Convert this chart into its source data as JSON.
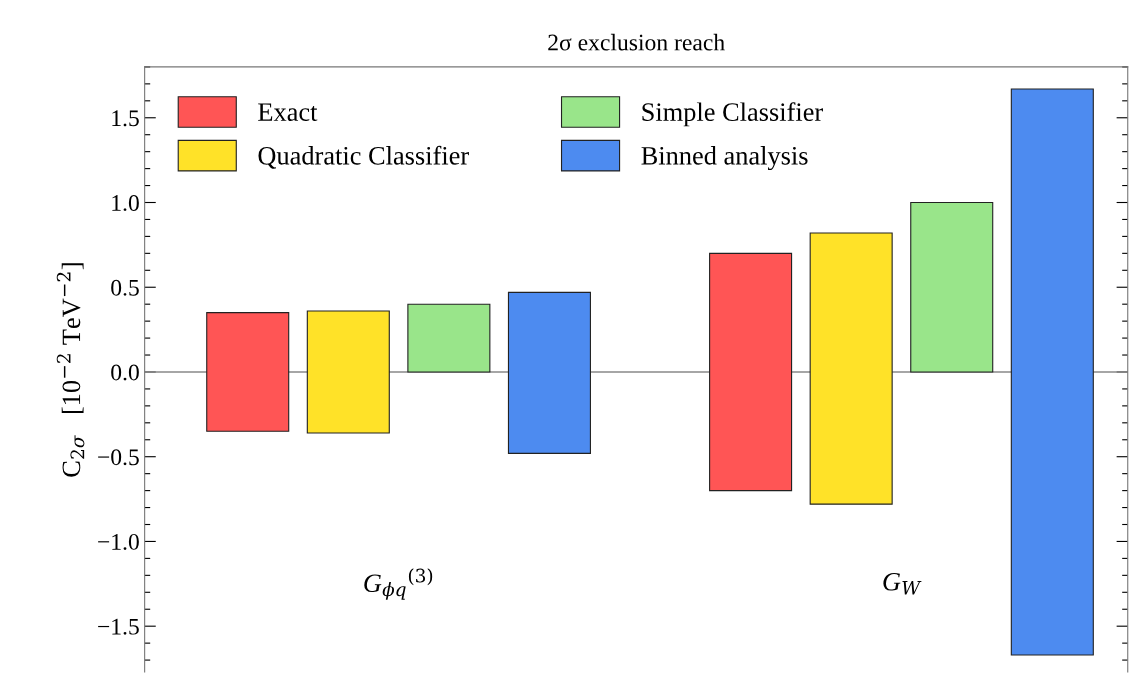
{
  "chart_data": {
    "type": "bar",
    "title": "2σ exclusion reach",
    "ylabel": "C$_{2σ}$   [10$^{−2}$ TeV$^{−2}$]",
    "categories": [
      "G$_{ϕq}$$^{(3)}$",
      "G$_{W}$"
    ],
    "series": [
      {
        "name": "Exact",
        "color": "#ff5555",
        "base": [
          -0.35,
          -0.7
        ],
        "values": [
          0.7,
          1.4
        ]
      },
      {
        "name": "Quadratic Classifier",
        "color": "#ffe228",
        "base": [
          -0.36,
          -0.78
        ],
        "values": [
          0.72,
          1.6
        ]
      },
      {
        "name": "Simple Classifier",
        "color": "#99e58a",
        "base": [
          0,
          0
        ],
        "values": [
          0.4,
          1.0
        ]
      },
      {
        "name": "Binned analysis",
        "color": "#4d8bf0",
        "base": [
          -0.48,
          -1.67
        ],
        "values": [
          0.95,
          3.34
        ]
      }
    ],
    "ylim": [
      -1.77,
      1.8
    ],
    "yticks": [
      {
        "value": -1.5,
        "label": "−1.5"
      },
      {
        "value": -1.0,
        "label": "−1.0"
      },
      {
        "value": -0.5,
        "label": "−0.5"
      },
      {
        "value": 0,
        "label": "0.0"
      },
      {
        "value": 0.5,
        "label": "0.5"
      },
      {
        "value": 1.0,
        "label": "1.0"
      },
      {
        "value": 1.5,
        "label": "1.5"
      }
    ],
    "ref_lines": [
      {
        "axis": "y",
        "value": 0,
        "color": "#888888"
      }
    ],
    "legend": "top left",
    "grid": false,
    "tick_labels": "y"
  }
}
